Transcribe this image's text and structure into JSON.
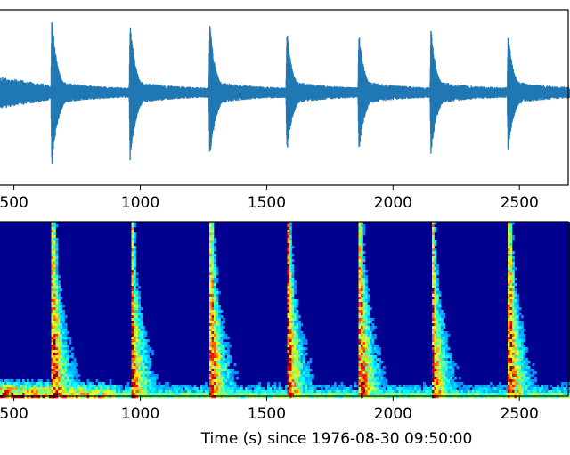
{
  "chart_data": [
    {
      "type": "line",
      "panel": "waveform",
      "title": "",
      "xlabel": "",
      "ylabel": "",
      "xlim": [
        445,
        2700
      ],
      "ylim": [
        -1,
        1
      ],
      "grid": false,
      "x_ticks": [
        500,
        1000,
        1500,
        2000,
        2500
      ],
      "x_tick_labels": [
        "500",
        "1000",
        "1500",
        "2000",
        "2500"
      ],
      "series": [
        {
          "color": "#1f77b4",
          "event_times": [
            650,
            960,
            1275,
            1580,
            1865,
            2150,
            2455
          ],
          "event_peak_amplitudes": [
            0.96,
            0.88,
            0.85,
            0.77,
            0.75,
            0.78,
            0.75
          ],
          "baseline_envelope": 0.05
        }
      ]
    },
    {
      "type": "heatmap",
      "panel": "spectrogram",
      "title": "",
      "xlabel": "Time (s) since 1976-08-30 09:50:00",
      "ylabel": "",
      "xlim": [
        445,
        2700
      ],
      "grid": false,
      "colormap": "jet",
      "x_ticks": [
        500,
        1000,
        1500,
        2000,
        2500
      ],
      "x_tick_labels": [
        "500",
        "1000",
        "1500",
        "2000",
        "2500"
      ],
      "event_times": [
        650,
        960,
        1275,
        1580,
        1865,
        2150,
        2455
      ]
    }
  ]
}
